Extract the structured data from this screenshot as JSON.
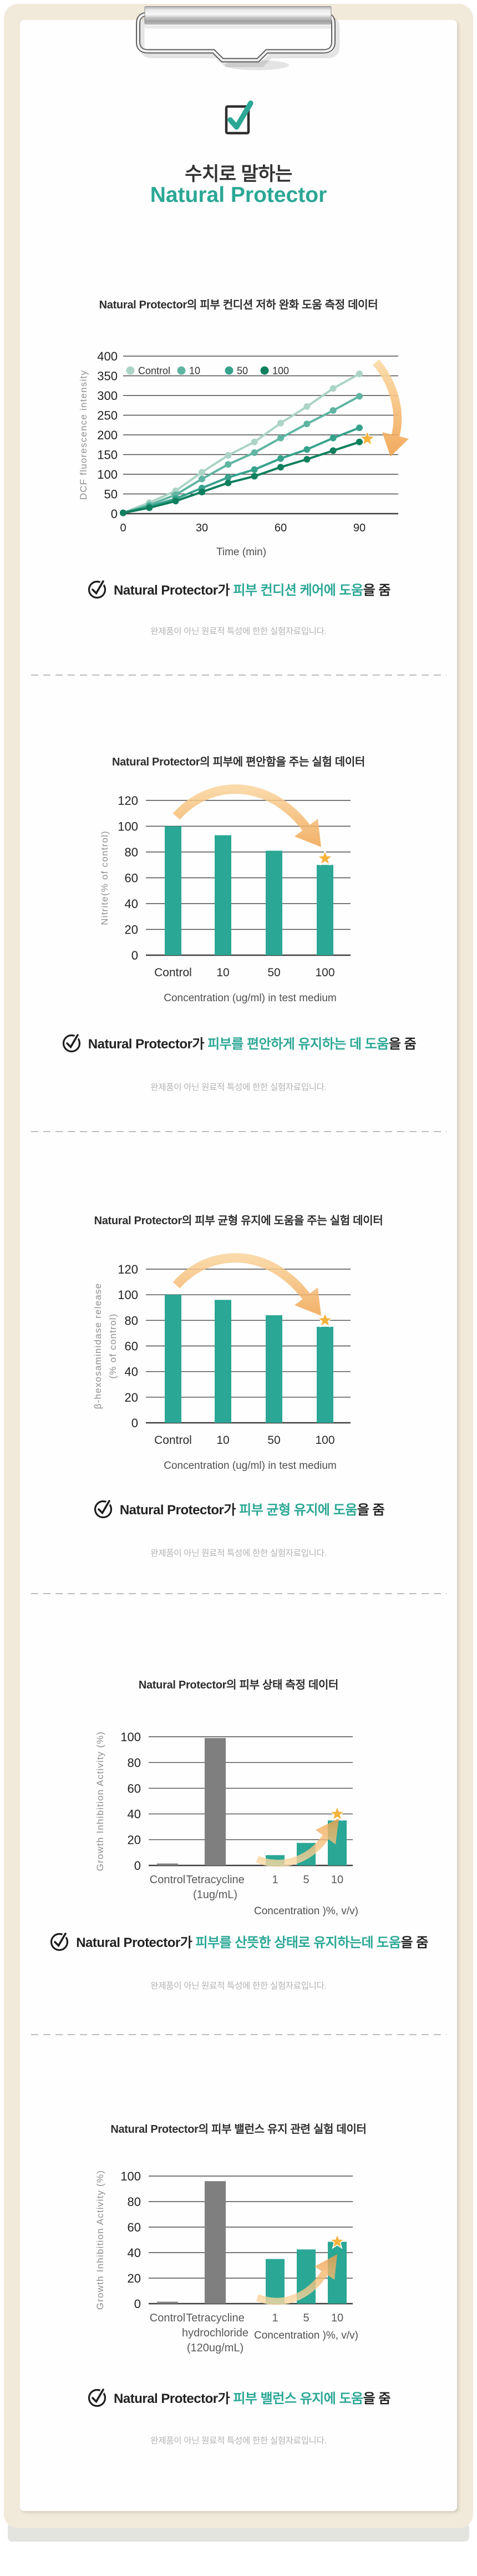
{
  "page": {
    "title_line1": "수치로 말하는",
    "title_line2": "Natural Protector",
    "accent_color": "#2BA795",
    "teal_bar_color": "#2BA795",
    "gray_bar_color": "#7F7F7F",
    "orange_arrow_color": "#F2A64F",
    "star_color": "#F5B33E",
    "board_color": "#F1EADA",
    "disclaimer": "완제품이 아닌 원료적 특성에 한한 실험자료입니다."
  },
  "captions": [
    {
      "prefix": "Natural Protector가 ",
      "highlight": "피부 컨디션 케어에 도움",
      "suffix": "을 줌"
    },
    {
      "prefix": "Natural Protector가 ",
      "highlight": "피부를 편안하게 유지하는 데 도움",
      "suffix": "을 줌"
    },
    {
      "prefix": "Natural Protector가 ",
      "highlight": "피부 균형 유지에 도움",
      "suffix": "을 줌"
    },
    {
      "prefix": "Natural Protector가 ",
      "highlight": "피부를 산뜻한 상태로 유지하는데 도움",
      "suffix": "을 줌"
    },
    {
      "prefix": "Natural Protector가 ",
      "highlight": "피부 밸런스 유지에 도움",
      "suffix": "을 줌"
    }
  ],
  "chart_data": [
    {
      "type": "line",
      "title": "Natural Protector의 피부 컨디션 저하 완화 도움 측정 데이터",
      "xlabel": "Time (min)",
      "ylabel": "DCF fluorescence intensity",
      "ylim": [
        0,
        400
      ],
      "ytick_step": 50,
      "xticks": [
        0,
        30,
        60,
        90
      ],
      "x": [
        0,
        10,
        20,
        30,
        40,
        50,
        60,
        70,
        80,
        90
      ],
      "grid": true,
      "legend_position": "top-inside",
      "series": [
        {
          "name": "Control",
          "color": "#ABD4C6",
          "values": [
            2,
            28,
            58,
            105,
            148,
            182,
            230,
            272,
            318,
            355
          ]
        },
        {
          "name": "10",
          "color": "#5FB5A2",
          "values": [
            2,
            22,
            48,
            88,
            125,
            155,
            192,
            228,
            262,
            298
          ]
        },
        {
          "name": "50",
          "color": "#37A28C",
          "values": [
            2,
            18,
            38,
            65,
            92,
            112,
            140,
            163,
            192,
            218
          ]
        },
        {
          "name": "100",
          "color": "#0F7F5D",
          "values": [
            2,
            15,
            32,
            55,
            78,
            95,
            118,
            138,
            160,
            182
          ]
        }
      ],
      "star": {
        "x": 93,
        "value": 190
      },
      "trend_arrow": "down"
    },
    {
      "type": "bar",
      "title": "Natural Protector의 피부에 편안함을 주는 실험 데이터",
      "xlabel": "Concentration (ug/ml) in test medium",
      "ylabel": [
        "Nitrite(% of control)"
      ],
      "ylim": [
        0,
        120
      ],
      "ytick_step": 20,
      "grid": true,
      "categories": [
        "Control",
        "10",
        "50",
        "100"
      ],
      "values": [
        100,
        93,
        81,
        70
      ],
      "bar_colors": [
        "#2BA795",
        "#2BA795",
        "#2BA795",
        "#2BA795"
      ],
      "star": {
        "category_index": 3,
        "value": 75
      },
      "trend_arrow": "down"
    },
    {
      "type": "bar",
      "title": "Natural Protector의 피부 균형 유지에 도움을 주는 실험 데이터",
      "xlabel": "Concentration (ug/ml) in test medium",
      "ylabel": [
        "β-hexosaminidase release",
        "(% of control)"
      ],
      "ylim": [
        0,
        120
      ],
      "ytick_step": 20,
      "grid": true,
      "categories": [
        "Control",
        "10",
        "50",
        "100"
      ],
      "values": [
        100,
        96,
        84,
        75
      ],
      "bar_colors": [
        "#2BA795",
        "#2BA795",
        "#2BA795",
        "#2BA795"
      ],
      "star": {
        "category_index": 3,
        "value": 80
      },
      "trend_arrow": "down"
    },
    {
      "type": "bar",
      "title": "Natural Protector의 피부 상태 측정 데이터",
      "xlabel": "Concentration )%, v/v)",
      "ylabel": [
        "Growth Inhibition Activity (%)"
      ],
      "ylim": [
        0,
        100
      ],
      "ytick_step": 20,
      "grid": true,
      "categories": [
        "Control",
        "Tetracycline\n(1ug/mL)",
        "1",
        "5",
        "10"
      ],
      "values": [
        1.5,
        99,
        8,
        17.5,
        35
      ],
      "bar_colors": [
        "#7F7F7F",
        "#7F7F7F",
        "#2BA795",
        "#2BA795",
        "#2BA795"
      ],
      "star": {
        "category_index": 4,
        "value": 40
      },
      "trend_arrow": "up"
    },
    {
      "type": "bar",
      "title": "Natural Protector의 피부 밸런스 유지 관련 실험 데이터",
      "xlabel": "Concentration )%, v/v)",
      "ylabel": [
        "Growth Inhibition Activity (%)"
      ],
      "ylim": [
        0,
        100
      ],
      "ytick_step": 20,
      "grid": true,
      "categories": [
        "Control",
        "Tetracycline\nhydrochloride\n(120ug/mL)",
        "1",
        "5",
        "10"
      ],
      "values": [
        1.5,
        96,
        35,
        42.5,
        48.5
      ],
      "bar_colors": [
        "#7F7F7F",
        "#7F7F7F",
        "#2BA795",
        "#2BA795",
        "#2BA795"
      ],
      "star": {
        "category_index": 4,
        "value": 48.5
      },
      "trend_arrow": "up"
    }
  ]
}
